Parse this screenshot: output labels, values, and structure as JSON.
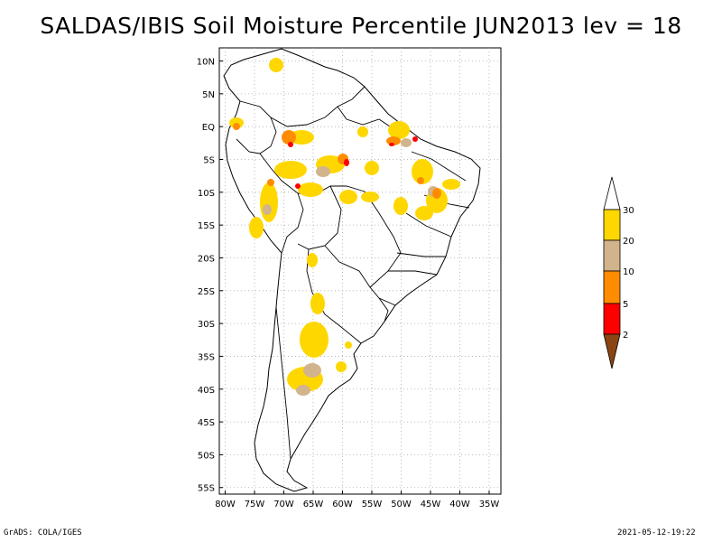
{
  "title": "SALDAS/IBIS Soil Moisture Percentile JUN2013 lev = 18",
  "footer": {
    "left": "GrADS: COLA/IGES",
    "right": "2021-05-12-19:22"
  },
  "axes": {
    "lat_labels": [
      "10N",
      "5N",
      "EQ",
      "5S",
      "10S",
      "15S",
      "20S",
      "25S",
      "30S",
      "35S",
      "40S",
      "45S",
      "50S",
      "55S"
    ],
    "lon_labels": [
      "80W",
      "75W",
      "70W",
      "65W",
      "60W",
      "55W",
      "50W",
      "45W",
      "40W",
      "35W"
    ]
  },
  "legend": {
    "labels": [
      "30",
      "20",
      "10",
      "5",
      "2"
    ],
    "colors": {
      "above30": "#ffffff",
      "p20_30": "#ffd700",
      "p10_20": "#d2b48c",
      "p5_10": "#ff8c00",
      "p2_5": "#ff0000",
      "below2": "#8b4513"
    }
  },
  "chart_data": {
    "type": "map",
    "title": "SALDAS/IBIS Soil Moisture Percentile JUN2013 lev = 18",
    "variable": "Soil Moisture Percentile",
    "period": "JUN2013",
    "level": 18,
    "lon_range": [
      -81,
      -33
    ],
    "lat_range": [
      -56,
      12
    ],
    "lon_ticks": [
      -80,
      -75,
      -70,
      -65,
      -60,
      -55,
      -50,
      -45,
      -40,
      -35
    ],
    "lat_ticks": [
      10,
      5,
      0,
      -5,
      -10,
      -15,
      -20,
      -25,
      -30,
      -35,
      -40,
      -45,
      -50,
      -55
    ],
    "colorbar_levels": [
      2,
      5,
      10,
      20,
      30
    ]
  }
}
